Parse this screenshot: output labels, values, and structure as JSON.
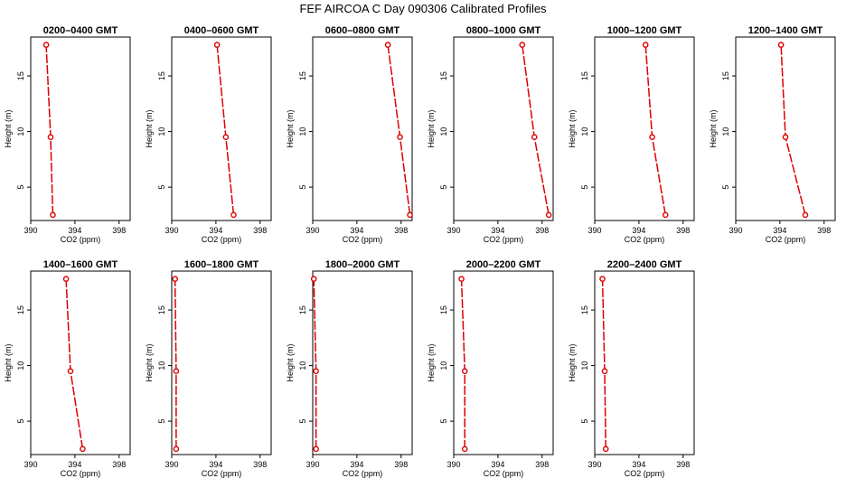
{
  "title": "FEF AIRCOA C  Day 090306  Calibrated Profiles",
  "colors": {
    "series": "#dd0000",
    "axis": "#000000",
    "background": "#ffffff"
  },
  "chart_data": [
    {
      "type": "line",
      "title": "0200–0400 GMT",
      "xlabel": "CO2 (ppm)",
      "ylabel": "Height (m)",
      "xlim": [
        390,
        399
      ],
      "ylim": [
        2,
        18.5
      ],
      "xticks": [
        "390",
        "394",
        "398"
      ],
      "yticks": [
        "5",
        "10",
        "15"
      ],
      "x": [
        392.0,
        391.8,
        391.4
      ],
      "y": [
        2.5,
        9.5,
        17.8
      ]
    },
    {
      "type": "line",
      "title": "0400–0600 GMT",
      "xlabel": "CO2 (ppm)",
      "ylabel": "Height (m)",
      "xlim": [
        390,
        399
      ],
      "ylim": [
        2,
        18.5
      ],
      "xticks": [
        "390",
        "394",
        "398"
      ],
      "yticks": [
        "5",
        "10",
        "15"
      ],
      "x": [
        395.6,
        394.9,
        394.1
      ],
      "y": [
        2.5,
        9.5,
        17.8
      ]
    },
    {
      "type": "line",
      "title": "0600–0800 GMT",
      "xlabel": "CO2 (ppm)",
      "ylabel": "Height (m)",
      "xlim": [
        390,
        399
      ],
      "ylim": [
        2,
        18.5
      ],
      "xticks": [
        "390",
        "394",
        "398"
      ],
      "yticks": [
        "5",
        "10",
        "15"
      ],
      "x": [
        398.8,
        397.9,
        396.8
      ],
      "y": [
        2.5,
        9.5,
        17.8
      ]
    },
    {
      "type": "line",
      "title": "0800–1000 GMT",
      "xlabel": "CO2 (ppm)",
      "ylabel": "Height (m)",
      "xlim": [
        390,
        399
      ],
      "ylim": [
        2,
        18.5
      ],
      "xticks": [
        "390",
        "394",
        "398"
      ],
      "yticks": [
        "5",
        "10",
        "15"
      ],
      "x": [
        398.6,
        397.3,
        396.2
      ],
      "y": [
        2.5,
        9.5,
        17.8
      ]
    },
    {
      "type": "line",
      "title": "1000–1200 GMT",
      "xlabel": "CO2 (ppm)",
      "ylabel": "Height (m)",
      "xlim": [
        390,
        399
      ],
      "ylim": [
        2,
        18.5
      ],
      "xticks": [
        "390",
        "394",
        "398"
      ],
      "yticks": [
        "5",
        "10",
        "15"
      ],
      "x": [
        396.4,
        395.2,
        394.6
      ],
      "y": [
        2.5,
        9.5,
        17.8
      ]
    },
    {
      "type": "line",
      "title": "1200–1400 GMT",
      "xlabel": "CO2 (ppm)",
      "ylabel": "Height (m)",
      "xlim": [
        390,
        399
      ],
      "ylim": [
        2,
        18.5
      ],
      "xticks": [
        "390",
        "394",
        "398"
      ],
      "yticks": [
        "5",
        "10",
        "15"
      ],
      "x": [
        396.3,
        394.5,
        394.1
      ],
      "y": [
        2.5,
        9.5,
        17.8
      ]
    },
    {
      "type": "line",
      "title": "1400–1600 GMT",
      "xlabel": "CO2 (ppm)",
      "ylabel": "Height (m)",
      "xlim": [
        390,
        399
      ],
      "ylim": [
        2,
        18.5
      ],
      "xticks": [
        "390",
        "394",
        "398"
      ],
      "yticks": [
        "5",
        "10",
        "15"
      ],
      "x": [
        394.7,
        393.6,
        393.2
      ],
      "y": [
        2.5,
        9.5,
        17.8
      ]
    },
    {
      "type": "line",
      "title": "1600–1800 GMT",
      "xlabel": "CO2 (ppm)",
      "ylabel": "Height (m)",
      "xlim": [
        390,
        399
      ],
      "ylim": [
        2,
        18.5
      ],
      "xticks": [
        "390",
        "394",
        "398"
      ],
      "yticks": [
        "5",
        "10",
        "15"
      ],
      "x": [
        390.4,
        390.4,
        390.3
      ],
      "y": [
        2.5,
        9.5,
        17.8
      ]
    },
    {
      "type": "line",
      "title": "1800–2000 GMT",
      "xlabel": "CO2 (ppm)",
      "ylabel": "Height (m)",
      "xlim": [
        390,
        399
      ],
      "ylim": [
        2,
        18.5
      ],
      "xticks": [
        "390",
        "394",
        "398"
      ],
      "yticks": [
        "5",
        "10",
        "15"
      ],
      "x": [
        390.3,
        390.3,
        390.1
      ],
      "y": [
        2.5,
        9.5,
        17.8
      ]
    },
    {
      "type": "line",
      "title": "2000–2200 GMT",
      "xlabel": "CO2 (ppm)",
      "ylabel": "Height (m)",
      "xlim": [
        390,
        399
      ],
      "ylim": [
        2,
        18.5
      ],
      "xticks": [
        "390",
        "394",
        "398"
      ],
      "yticks": [
        "5",
        "10",
        "15"
      ],
      "x": [
        391.0,
        391.0,
        390.7
      ],
      "y": [
        2.5,
        9.5,
        17.8
      ]
    },
    {
      "type": "line",
      "title": "2200–2400 GMT",
      "xlabel": "CO2 (ppm)",
      "ylabel": "Height (m)",
      "xlim": [
        390,
        399
      ],
      "ylim": [
        2,
        18.5
      ],
      "xticks": [
        "390",
        "394",
        "398"
      ],
      "yticks": [
        "5",
        "10",
        "15"
      ],
      "x": [
        391.0,
        390.9,
        390.7
      ],
      "y": [
        2.5,
        9.5,
        17.8
      ]
    }
  ]
}
